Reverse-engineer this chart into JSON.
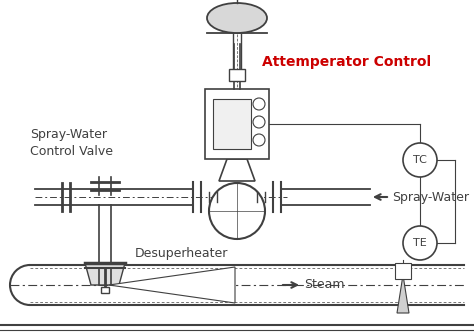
{
  "title": "Attemperator Control",
  "title_color": "#cc0000",
  "label_spray_water_valve": "Spray-Water\nControl Valve",
  "label_spray_water": "Spray-Water",
  "label_desuperheater": "Desuperheater",
  "label_steam": "Steam",
  "label_tc": "TC",
  "label_te": "TE",
  "bg_color": "#ffffff",
  "line_color": "#404040",
  "fig_width": 4.74,
  "fig_height": 3.34,
  "dpi": 100
}
